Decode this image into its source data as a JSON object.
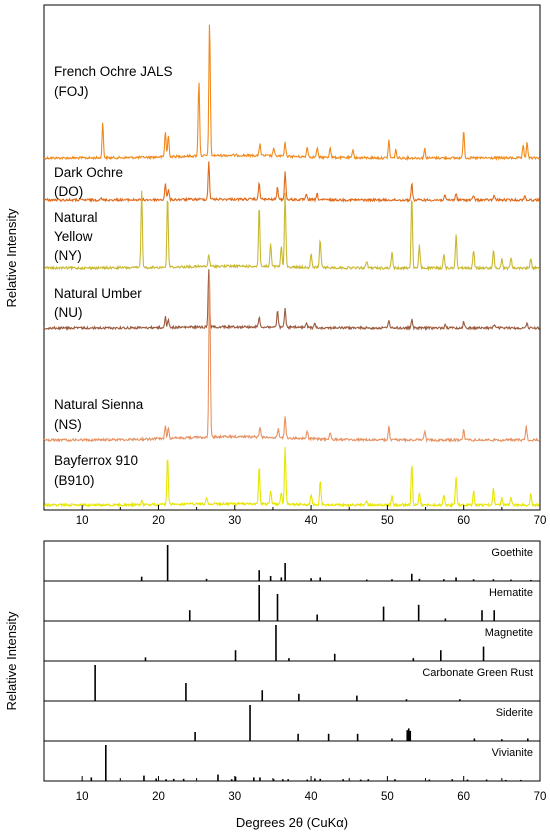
{
  "chart_data": [
    {
      "type": "line",
      "ylabel": "Relative Intensity",
      "xlim": [
        5,
        70
      ],
      "xticks": [
        10,
        20,
        30,
        40,
        50,
        60,
        70
      ],
      "xtick_labels": [
        "10",
        "20",
        "30",
        "40",
        "50",
        "60",
        "70"
      ],
      "grid": false,
      "series": [
        {
          "name": "French Ochre JALS (FOJ)",
          "label_lines": [
            "French Ochre JALS",
            "(FOJ)"
          ],
          "color": "#f08a1c",
          "peaks": [
            [
              12.7,
              0.26
            ],
            [
              20.9,
              0.19
            ],
            [
              21.3,
              0.16
            ],
            [
              25.3,
              0.56
            ],
            [
              26.7,
              1.0
            ],
            [
              33.3,
              0.09
            ],
            [
              35.1,
              0.06
            ],
            [
              36.6,
              0.1
            ],
            [
              39.5,
              0.08
            ],
            [
              40.8,
              0.07
            ],
            [
              42.5,
              0.08
            ],
            [
              45.5,
              0.06
            ],
            [
              50.2,
              0.13
            ],
            [
              51.1,
              0.06
            ],
            [
              54.9,
              0.07
            ],
            [
              60.0,
              0.21
            ],
            [
              67.8,
              0.09
            ],
            [
              68.3,
              0.12
            ]
          ]
        },
        {
          "name": "Dark Ochre (DO)",
          "label_lines": [
            "Dark Ochre",
            "(DO)"
          ],
          "color": "#e06a1a",
          "peaks": [
            [
              12.4,
              0.06
            ],
            [
              20.9,
              0.42
            ],
            [
              21.3,
              0.28
            ],
            [
              26.6,
              1.0
            ],
            [
              33.2,
              0.45
            ],
            [
              35.6,
              0.32
            ],
            [
              36.6,
              0.72
            ],
            [
              39.4,
              0.15
            ],
            [
              40.8,
              0.15
            ],
            [
              53.2,
              0.45
            ],
            [
              57.5,
              0.12
            ],
            [
              59.0,
              0.18
            ],
            [
              61.3,
              0.12
            ],
            [
              64.0,
              0.12
            ],
            [
              68.0,
              0.12
            ]
          ]
        },
        {
          "name": "Natural Yellow (NY)",
          "label_lines": [
            "Natural",
            "Yellow",
            "(NY)"
          ],
          "color": "#c8b830",
          "peaks": [
            [
              17.8,
              0.85
            ],
            [
              21.2,
              0.8
            ],
            [
              26.6,
              0.14
            ],
            [
              33.2,
              0.68
            ],
            [
              34.7,
              0.25
            ],
            [
              36.1,
              0.22
            ],
            [
              36.6,
              0.82
            ],
            [
              40.0,
              0.15
            ],
            [
              41.2,
              0.32
            ],
            [
              47.3,
              0.08
            ],
            [
              50.6,
              0.18
            ],
            [
              53.2,
              0.82
            ],
            [
              54.2,
              0.25
            ],
            [
              57.4,
              0.15
            ],
            [
              59.0,
              0.38
            ],
            [
              61.3,
              0.2
            ],
            [
              63.9,
              0.2
            ],
            [
              65.0,
              0.1
            ],
            [
              66.2,
              0.12
            ],
            [
              68.8,
              0.12
            ]
          ]
        },
        {
          "name": "Natural Umber (NU)",
          "label_lines": [
            "Natural Umber",
            "(NU)"
          ],
          "color": "#9a5a3e",
          "peaks": [
            [
              20.9,
              0.18
            ],
            [
              21.3,
              0.14
            ],
            [
              26.6,
              1.0
            ],
            [
              33.2,
              0.18
            ],
            [
              35.6,
              0.3
            ],
            [
              36.6,
              0.32
            ],
            [
              39.4,
              0.08
            ],
            [
              40.5,
              0.07
            ],
            [
              50.2,
              0.15
            ],
            [
              53.2,
              0.15
            ],
            [
              57.6,
              0.07
            ],
            [
              60.0,
              0.12
            ],
            [
              64.0,
              0.06
            ],
            [
              68.3,
              0.08
            ]
          ]
        },
        {
          "name": "Natural Sienna (NS)",
          "label_lines": [
            "Natural Sienna",
            "(NS)"
          ],
          "color": "#e69262",
          "peaks": [
            [
              20.9,
              0.08
            ],
            [
              21.3,
              0.07
            ],
            [
              26.7,
              1.0
            ],
            [
              33.3,
              0.06
            ],
            [
              35.7,
              0.05
            ],
            [
              36.6,
              0.13
            ],
            [
              39.5,
              0.05
            ],
            [
              42.5,
              0.04
            ],
            [
              50.2,
              0.08
            ],
            [
              54.9,
              0.05
            ],
            [
              60.0,
              0.07
            ],
            [
              68.2,
              0.08
            ]
          ]
        },
        {
          "name": "Bayferrox 910 (B910)",
          "label_lines": [
            "Bayferrox 910",
            "(B910)"
          ],
          "color": "#e6e600",
          "peaks": [
            [
              17.8,
              0.07
            ],
            [
              21.2,
              0.85
            ],
            [
              26.3,
              0.12
            ],
            [
              33.2,
              0.65
            ],
            [
              34.7,
              0.25
            ],
            [
              36.1,
              0.2
            ],
            [
              36.6,
              1.0
            ],
            [
              40.0,
              0.18
            ],
            [
              41.2,
              0.4
            ],
            [
              47.3,
              0.08
            ],
            [
              50.6,
              0.15
            ],
            [
              53.2,
              0.72
            ],
            [
              54.2,
              0.2
            ],
            [
              57.4,
              0.18
            ],
            [
              59.0,
              0.5
            ],
            [
              61.3,
              0.25
            ],
            [
              63.9,
              0.3
            ],
            [
              65.0,
              0.12
            ],
            [
              66.2,
              0.15
            ],
            [
              68.8,
              0.2
            ]
          ]
        }
      ]
    },
    {
      "type": "bar",
      "ylabel": "Relative Intensity",
      "xlabel": "Degrees 2θ (CuKα)",
      "xlim": [
        5,
        70
      ],
      "xticks": [
        10,
        20,
        30,
        40,
        50,
        60,
        70
      ],
      "xtick_labels": [
        "10",
        "20",
        "30",
        "40",
        "50",
        "60",
        "70"
      ],
      "grid": false,
      "series": [
        {
          "name": "Goethite",
          "color": "#000000",
          "peaks": [
            [
              17.8,
              0.12
            ],
            [
              21.2,
              1.0
            ],
            [
              26.3,
              0.06
            ],
            [
              33.2,
              0.3
            ],
            [
              34.7,
              0.14
            ],
            [
              36.1,
              0.1
            ],
            [
              36.6,
              0.5
            ],
            [
              40.0,
              0.08
            ],
            [
              41.2,
              0.1
            ],
            [
              47.3,
              0.04
            ],
            [
              50.6,
              0.05
            ],
            [
              53.2,
              0.2
            ],
            [
              54.2,
              0.06
            ],
            [
              57.4,
              0.05
            ],
            [
              59.0,
              0.1
            ],
            [
              61.3,
              0.05
            ],
            [
              63.9,
              0.05
            ],
            [
              66.2,
              0.04
            ],
            [
              68.8,
              0.03
            ]
          ]
        },
        {
          "name": "Hematite",
          "color": "#000000",
          "peaks": [
            [
              24.1,
              0.3
            ],
            [
              33.2,
              1.0
            ],
            [
              35.6,
              0.75
            ],
            [
              40.8,
              0.18
            ],
            [
              49.5,
              0.4
            ],
            [
              54.1,
              0.45
            ],
            [
              57.6,
              0.07
            ],
            [
              62.4,
              0.3
            ],
            [
              64.0,
              0.3
            ]
          ]
        },
        {
          "name": "Magnetite",
          "color": "#000000",
          "peaks": [
            [
              18.3,
              0.1
            ],
            [
              30.1,
              0.3
            ],
            [
              35.4,
              1.0
            ],
            [
              37.1,
              0.08
            ],
            [
              43.1,
              0.2
            ],
            [
              53.4,
              0.08
            ],
            [
              57.0,
              0.3
            ],
            [
              62.6,
              0.4
            ]
          ]
        },
        {
          "name": "Carbonate Green Rust",
          "color": "#000000",
          "peaks": [
            [
              11.7,
              1.0
            ],
            [
              23.6,
              0.5
            ],
            [
              33.6,
              0.3
            ],
            [
              38.4,
              0.2
            ],
            [
              46.0,
              0.15
            ],
            [
              52.5,
              0.05
            ],
            [
              59.5,
              0.05
            ]
          ]
        },
        {
          "name": "Siderite",
          "color": "#000000",
          "peaks": [
            [
              24.8,
              0.25
            ],
            [
              32.0,
              1.0
            ],
            [
              38.3,
              0.2
            ],
            [
              42.3,
              0.2
            ],
            [
              46.1,
              0.2
            ],
            [
              50.6,
              0.07
            ],
            [
              52.6,
              0.3
            ],
            [
              52.8,
              0.35
            ],
            [
              53.0,
              0.28
            ],
            [
              61.4,
              0.07
            ],
            [
              65.0,
              0.05
            ],
            [
              68.4,
              0.07
            ]
          ]
        },
        {
          "name": "Vivianite",
          "color": "#000000",
          "peaks": [
            [
              11.2,
              0.1
            ],
            [
              13.1,
              1.0
            ],
            [
              18.1,
              0.15
            ],
            [
              19.7,
              0.07
            ],
            [
              21.0,
              0.05
            ],
            [
              22.0,
              0.06
            ],
            [
              23.3,
              0.06
            ],
            [
              27.8,
              0.18
            ],
            [
              29.6,
              0.05
            ],
            [
              30.1,
              0.12
            ],
            [
              32.5,
              0.1
            ],
            [
              33.3,
              0.1
            ],
            [
              35.1,
              0.05
            ],
            [
              36.3,
              0.05
            ],
            [
              37.0,
              0.05
            ],
            [
              39.5,
              0.04
            ],
            [
              40.5,
              0.07
            ],
            [
              41.2,
              0.06
            ],
            [
              44.2,
              0.05
            ],
            [
              46.5,
              0.04
            ],
            [
              47.5,
              0.05
            ],
            [
              51.0,
              0.05
            ],
            [
              55.5,
              0.04
            ],
            [
              58.5,
              0.05
            ],
            [
              60.5,
              0.04
            ],
            [
              63.0,
              0.04
            ],
            [
              65.5,
              0.03
            ],
            [
              67.5,
              0.03
            ]
          ]
        }
      ]
    }
  ]
}
